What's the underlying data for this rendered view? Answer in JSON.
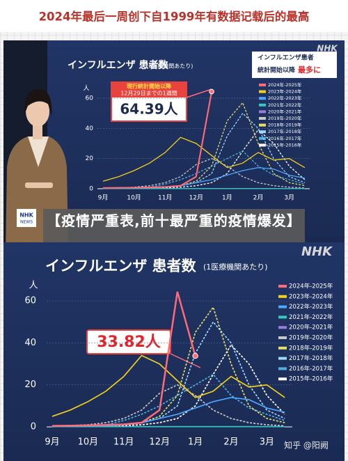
{
  "header": {
    "title": "2024年最后一周创下自1999年有数据记载后的最高"
  },
  "news_logo": {
    "top": "NHK",
    "bottom": "NEWS"
  },
  "caption": "【疫情严重表,前十最严重的疫情爆发】",
  "watermark": "知乎 @阳阙",
  "chart_data": [
    {
      "type": "line",
      "title": "インフルエンザ 患者数",
      "subtitle": "(1医療機関あたり)",
      "y_unit": "人",
      "logo": "NHK",
      "side_note": [
        "インフルエンザ患者",
        "統計開始以降",
        "最多に"
      ],
      "annotation": [
        "現行統計開始以降",
        "12月29日までの1週間",
        "64.39人"
      ],
      "categories": [
        "9月",
        null,
        "10月",
        null,
        "11月",
        null,
        "12月",
        null,
        "1月",
        null,
        "2月",
        null,
        "3月",
        null
      ],
      "ylim": [
        0,
        68
      ],
      "yticks": [
        0,
        20,
        40,
        60
      ],
      "series": [
        {
          "name": "2024年-2025年",
          "color": "#ff6b78",
          "dashed": false,
          "values": [
            0.5,
            0.6,
            0.7,
            0.9,
            1.2,
            2,
            8,
            64.39,
            null,
            null,
            null,
            null,
            null,
            null
          ]
        },
        {
          "name": "2023年-2024年",
          "color": "#f2cf1d",
          "dashed": false,
          "values": [
            5,
            8,
            12,
            17,
            24,
            34,
            30,
            22,
            14,
            17,
            24,
            19,
            20,
            14
          ]
        },
        {
          "name": "2022年-2023年",
          "color": "#4da6ff",
          "dashed": false,
          "values": [
            0.3,
            0.3,
            0.4,
            0.5,
            1,
            2,
            4,
            6,
            9,
            12,
            14,
            13,
            9,
            7
          ]
        },
        {
          "name": "2021年-2022年",
          "color": "#37c8c0",
          "dashed": false,
          "values": [
            0.1,
            0.1,
            0.1,
            0.1,
            0.1,
            0.1,
            0.1,
            0.1,
            0.1,
            0.1,
            0.1,
            0.1,
            0.1,
            0.1
          ]
        },
        {
          "name": "2020年-2021年",
          "color": "#9a7dd8",
          "dashed": false,
          "values": [
            0.1,
            0.1,
            0.1,
            0.1,
            0.1,
            0.1,
            0.1,
            0.1,
            0.1,
            0.1,
            0.1,
            0.1,
            0.1,
            0.1
          ]
        },
        {
          "name": "2019年-2020年",
          "color": "#c8c8c8",
          "dashed": true,
          "values": [
            0.5,
            0.6,
            1,
            2,
            4,
            8,
            16,
            20,
            15,
            8,
            4,
            2,
            1,
            0.5
          ]
        },
        {
          "name": "2018年-2019年",
          "color": "#e6de6a",
          "dashed": true,
          "values": [
            0.3,
            0.3,
            0.4,
            0.6,
            1,
            2,
            5,
            15,
            45,
            57,
            30,
            10,
            4,
            2
          ]
        },
        {
          "name": "2017年-2018年",
          "color": "#9ed8ff",
          "dashed": true,
          "values": [
            0.3,
            0.3,
            0.4,
            0.6,
            1,
            2,
            4,
            10,
            35,
            50,
            40,
            20,
            8,
            4
          ]
        },
        {
          "name": "2016年-2017年",
          "color": "#4fb0e0",
          "dashed": true,
          "values": [
            0.3,
            0.4,
            0.6,
            1,
            3,
            6,
            10,
            15,
            20,
            25,
            15,
            9,
            6,
            3
          ]
        },
        {
          "name": "2015年-2016年",
          "color": "#ffffff",
          "dashed": true,
          "values": [
            0.3,
            0.3,
            0.3,
            0.4,
            0.6,
            1,
            2,
            4,
            10,
            25,
            39,
            30,
            15,
            6
          ]
        }
      ]
    },
    {
      "type": "line",
      "title": "インフルエンザ 患者数",
      "subtitle": "(1医療機関あたり)",
      "y_unit": "人",
      "logo": "NHK",
      "annotation": [
        "33.82人"
      ],
      "categories": [
        "9月",
        null,
        "10月",
        null,
        "11月",
        null,
        "12月",
        null,
        "1月",
        null,
        "2月",
        null,
        "3月",
        null
      ],
      "ylim": [
        0,
        68
      ],
      "yticks": [
        0,
        20,
        40,
        60
      ],
      "series": [
        {
          "name": "2024年-2025年",
          "color": "#ff6b78",
          "dashed": false,
          "values": [
            0.5,
            0.6,
            0.7,
            0.9,
            1.2,
            2,
            8,
            64.39,
            33.82,
            null,
            null,
            null,
            null,
            null
          ]
        },
        {
          "name": "2023年-2024年",
          "color": "#f2cf1d",
          "dashed": false,
          "values": [
            5,
            8,
            12,
            17,
            24,
            34,
            30,
            22,
            14,
            17,
            24,
            19,
            20,
            14
          ]
        },
        {
          "name": "2022年-2023年",
          "color": "#4da6ff",
          "dashed": false,
          "values": [
            0.3,
            0.3,
            0.4,
            0.5,
            1,
            2,
            4,
            6,
            9,
            12,
            14,
            13,
            9,
            7
          ]
        },
        {
          "name": "2021年-2022年",
          "color": "#37c8c0",
          "dashed": false,
          "values": [
            0.1,
            0.1,
            0.1,
            0.1,
            0.1,
            0.1,
            0.1,
            0.1,
            0.1,
            0.1,
            0.1,
            0.1,
            0.1,
            0.1
          ]
        },
        {
          "name": "2020年-2021年",
          "color": "#9a7dd8",
          "dashed": false,
          "values": [
            0.1,
            0.1,
            0.1,
            0.1,
            0.1,
            0.1,
            0.1,
            0.1,
            0.1,
            0.1,
            0.1,
            0.1,
            0.1,
            0.1
          ]
        },
        {
          "name": "2019年-2020年",
          "color": "#c8c8c8",
          "dashed": true,
          "values": [
            0.5,
            0.6,
            1,
            2,
            4,
            8,
            16,
            20,
            15,
            8,
            4,
            2,
            1,
            0.5
          ]
        },
        {
          "name": "2018年-2019年",
          "color": "#e6de6a",
          "dashed": true,
          "values": [
            0.3,
            0.3,
            0.4,
            0.6,
            1,
            2,
            5,
            15,
            45,
            57,
            30,
            10,
            4,
            2
          ]
        },
        {
          "name": "2017年-2018年",
          "color": "#9ed8ff",
          "dashed": true,
          "values": [
            0.3,
            0.3,
            0.4,
            0.6,
            1,
            2,
            4,
            10,
            35,
            50,
            40,
            20,
            8,
            4
          ]
        },
        {
          "name": "2016年-2017年",
          "color": "#4fb0e0",
          "dashed": true,
          "values": [
            0.3,
            0.4,
            0.6,
            1,
            3,
            6,
            10,
            15,
            20,
            25,
            15,
            9,
            6,
            3
          ]
        },
        {
          "name": "2015年-2016年",
          "color": "#ffffff",
          "dashed": true,
          "values": [
            0.3,
            0.3,
            0.3,
            0.4,
            0.6,
            1,
            2,
            4,
            10,
            25,
            39,
            30,
            15,
            6
          ]
        }
      ]
    }
  ]
}
